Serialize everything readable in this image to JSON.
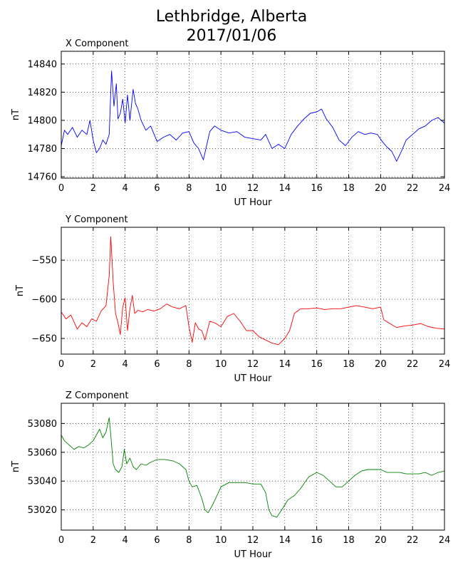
{
  "title_line1": "Lethbridge, Alberta",
  "title_line2": "2017/01/06",
  "chart_data": [
    {
      "type": "line",
      "panel_title": "X Component",
      "xlabel": "UT Hour",
      "ylabel": "nT",
      "color": "#0000ff",
      "xlim": [
        0,
        24
      ],
      "ylim": [
        14759,
        14849
      ],
      "xticks": [
        0,
        2,
        4,
        6,
        8,
        10,
        12,
        14,
        16,
        18,
        20,
        22,
        24
      ],
      "yticks": [
        14760,
        14780,
        14800,
        14820,
        14840
      ],
      "ytick_labels": [
        "14760",
        "14780",
        "14800",
        "14820",
        "14840"
      ],
      "grid": true,
      "series": [
        {
          "x": [
            0,
            0.2,
            0.4,
            0.7,
            1.0,
            1.3,
            1.6,
            1.8,
            2.0,
            2.2,
            2.4,
            2.6,
            2.8,
            3.0,
            3.15,
            3.3,
            3.45,
            3.55,
            3.7,
            3.85,
            4.0,
            4.15,
            4.3,
            4.5,
            4.65,
            4.8,
            5.0,
            5.3,
            5.6,
            6.0,
            6.4,
            6.8,
            7.2,
            7.6,
            8.0,
            8.3,
            8.6,
            8.9,
            9.1,
            9.3,
            9.6,
            10.0,
            10.5,
            11.0,
            11.5,
            12.0,
            12.5,
            12.8,
            13.2,
            13.6,
            14.0,
            14.4,
            14.8,
            15.2,
            15.6,
            16.0,
            16.3,
            16.6,
            17.0,
            17.4,
            17.8,
            18.2,
            18.6,
            19.0,
            19.4,
            19.8,
            20.1,
            20.4,
            20.7,
            21.0,
            21.3,
            21.6,
            22.0,
            22.4,
            22.8,
            23.2,
            23.6,
            24.0
          ],
          "y": [
            14782,
            14793,
            14790,
            14795,
            14788,
            14793,
            14790,
            14800,
            14786,
            14777,
            14780,
            14786,
            14783,
            14790,
            14835,
            14810,
            14826,
            14801,
            14805,
            14815,
            14798,
            14818,
            14800,
            14822,
            14812,
            14808,
            14800,
            14793,
            14796,
            14785,
            14788,
            14790,
            14786,
            14791,
            14792,
            14784,
            14780,
            14772,
            14782,
            14792,
            14796,
            14793,
            14791,
            14792,
            14788,
            14787,
            14786,
            14790,
            14780,
            14783,
            14780,
            14790,
            14796,
            14801,
            14805,
            14806,
            14808,
            14801,
            14795,
            14786,
            14782,
            14788,
            14792,
            14790,
            14791,
            14790,
            14785,
            14781,
            14778,
            14771,
            14778,
            14786,
            14790,
            14794,
            14796,
            14800,
            14802,
            14798
          ]
        }
      ]
    },
    {
      "type": "line",
      "panel_title": "Y Component",
      "xlabel": "UT Hour",
      "ylabel": "nT",
      "color": "#ff0000",
      "xlim": [
        0,
        24
      ],
      "ylim": [
        -670,
        -508
      ],
      "xticks": [
        0,
        2,
        4,
        6,
        8,
        10,
        12,
        14,
        16,
        18,
        20,
        22,
        24
      ],
      "yticks": [
        -650,
        -600,
        -550
      ],
      "ytick_labels": [
        "−650",
        "−600",
        "−550"
      ],
      "grid": true,
      "series": [
        {
          "x": [
            0,
            0.3,
            0.6,
            1.0,
            1.3,
            1.6,
            1.9,
            2.2,
            2.5,
            2.8,
            3.0,
            3.1,
            3.25,
            3.4,
            3.55,
            3.7,
            3.85,
            4.0,
            4.15,
            4.3,
            4.45,
            4.6,
            4.8,
            5.1,
            5.4,
            5.8,
            6.2,
            6.6,
            7.0,
            7.4,
            7.8,
            8.0,
            8.2,
            8.4,
            8.6,
            8.8,
            9.0,
            9.3,
            9.6,
            10.0,
            10.4,
            10.8,
            11.2,
            11.6,
            12.0,
            12.4,
            12.8,
            13.2,
            13.6,
            14.0,
            14.3,
            14.6,
            15.0,
            15.5,
            16.0,
            16.5,
            17.0,
            17.5,
            18.0,
            18.5,
            19.0,
            19.5,
            20.0,
            20.2,
            20.5,
            21.0,
            21.5,
            22.0,
            22.5,
            23.0,
            23.5,
            24.0
          ],
          "y": [
            -616,
            -625,
            -620,
            -638,
            -630,
            -635,
            -625,
            -628,
            -615,
            -608,
            -570,
            -520,
            -578,
            -618,
            -630,
            -645,
            -610,
            -598,
            -640,
            -612,
            -595,
            -618,
            -614,
            -616,
            -613,
            -615,
            -612,
            -606,
            -610,
            -612,
            -608,
            -635,
            -655,
            -630,
            -638,
            -640,
            -652,
            -628,
            -630,
            -635,
            -622,
            -618,
            -628,
            -640,
            -640,
            -648,
            -652,
            -656,
            -658,
            -650,
            -640,
            -618,
            -612,
            -612,
            -611,
            -613,
            -612,
            -612,
            -610,
            -608,
            -610,
            -612,
            -610,
            -626,
            -630,
            -636,
            -634,
            -633,
            -631,
            -635,
            -637,
            -638
          ]
        }
      ]
    },
    {
      "type": "line",
      "panel_title": "Z Component",
      "xlabel": "UT Hour",
      "ylabel": "nT",
      "color": "#008000",
      "xlim": [
        0,
        24
      ],
      "ylim": [
        53006,
        53094
      ],
      "xticks": [
        0,
        2,
        4,
        6,
        8,
        10,
        12,
        14,
        16,
        18,
        20,
        22,
        24
      ],
      "yticks": [
        53020,
        53040,
        53060,
        53080
      ],
      "ytick_labels": [
        "53020",
        "53040",
        "53060",
        "53080"
      ],
      "grid": true,
      "series": [
        {
          "x": [
            0,
            0.2,
            0.5,
            0.8,
            1.1,
            1.4,
            1.7,
            2.0,
            2.2,
            2.4,
            2.6,
            2.8,
            3.0,
            3.1,
            3.25,
            3.4,
            3.6,
            3.8,
            3.95,
            4.1,
            4.3,
            4.5,
            4.7,
            5.0,
            5.3,
            5.6,
            6.0,
            6.5,
            7.0,
            7.4,
            7.8,
            8.0,
            8.2,
            8.5,
            8.8,
            9.0,
            9.2,
            9.5,
            10.0,
            10.5,
            11.0,
            11.5,
            12.0,
            12.5,
            12.8,
            13.0,
            13.2,
            13.5,
            13.8,
            14.2,
            14.6,
            15.0,
            15.5,
            16.0,
            16.4,
            16.8,
            17.2,
            17.6,
            18.0,
            18.4,
            18.8,
            19.2,
            19.6,
            20.0,
            20.4,
            20.8,
            21.2,
            21.6,
            22.0,
            22.4,
            22.8,
            23.2,
            23.6,
            24.0
          ],
          "y": [
            53072,
            53068,
            53065,
            53062,
            53064,
            53063,
            53065,
            53068,
            53072,
            53076,
            53070,
            53074,
            53084,
            53072,
            53052,
            53048,
            53046,
            53050,
            53062,
            53052,
            53056,
            53050,
            53048,
            53052,
            53051,
            53053,
            53055,
            53055,
            53054,
            53052,
            53048,
            53040,
            53036,
            53037,
            53028,
            53020,
            53018,
            53024,
            53036,
            53039,
            53039,
            53039,
            53038,
            53038,
            53032,
            53020,
            53016,
            53015,
            53020,
            53027,
            53030,
            53035,
            53043,
            53046,
            53044,
            53040,
            53036,
            53036,
            53040,
            53044,
            53047,
            53048,
            53048,
            53048,
            53046,
            53046,
            53046,
            53045,
            53045,
            53045,
            53046,
            53044,
            53046,
            53047
          ]
        }
      ]
    }
  ]
}
